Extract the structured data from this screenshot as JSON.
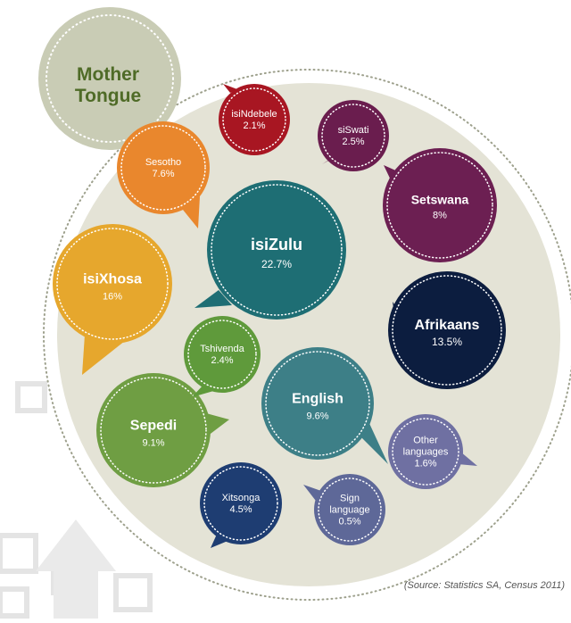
{
  "title": {
    "line1": "Mother",
    "line2": "Tongue"
  },
  "source": "(Source: Statistics SA, Census 2011)",
  "chart_data": {
    "type": "bubble",
    "title": "Mother Tongue",
    "unit": "%",
    "items": [
      {
        "label": "isiZulu",
        "value": 22.7,
        "display": "22.7%",
        "color": "#1e6e74"
      },
      {
        "label": "isiXhosa",
        "value": 16,
        "display": "16%",
        "color": "#e6a72d"
      },
      {
        "label": "Afrikaans",
        "value": 13.5,
        "display": "13.5%",
        "color": "#0c1d3f"
      },
      {
        "label": "English",
        "value": 9.6,
        "display": "9.6%",
        "color": "#3d7f87"
      },
      {
        "label": "Sepedi",
        "value": 9.1,
        "display": "9.1%",
        "color": "#6f9e43"
      },
      {
        "label": "Setswana",
        "value": 8,
        "display": "8%",
        "color": "#6c1f52"
      },
      {
        "label": "Sesotho",
        "value": 7.6,
        "display": "7.6%",
        "color": "#e9872d"
      },
      {
        "label": "Xitsonga",
        "value": 4.5,
        "display": "4.5%",
        "color": "#1e3d72"
      },
      {
        "label": "siSwati",
        "value": 2.5,
        "display": "2.5%",
        "color": "#6a1d4e"
      },
      {
        "label": "Tshivenda",
        "value": 2.4,
        "display": "2.4%",
        "color": "#5f9a3b"
      },
      {
        "label": "isiNdebele",
        "value": 2.1,
        "display": "2.1%",
        "color": "#a81622"
      },
      {
        "label": "Other languages",
        "value": 1.6,
        "display": "1.6%",
        "color": "#6f70a2"
      },
      {
        "label": "Sign language",
        "value": 0.5,
        "display": "0.5%",
        "color": "#5e6898"
      }
    ]
  }
}
